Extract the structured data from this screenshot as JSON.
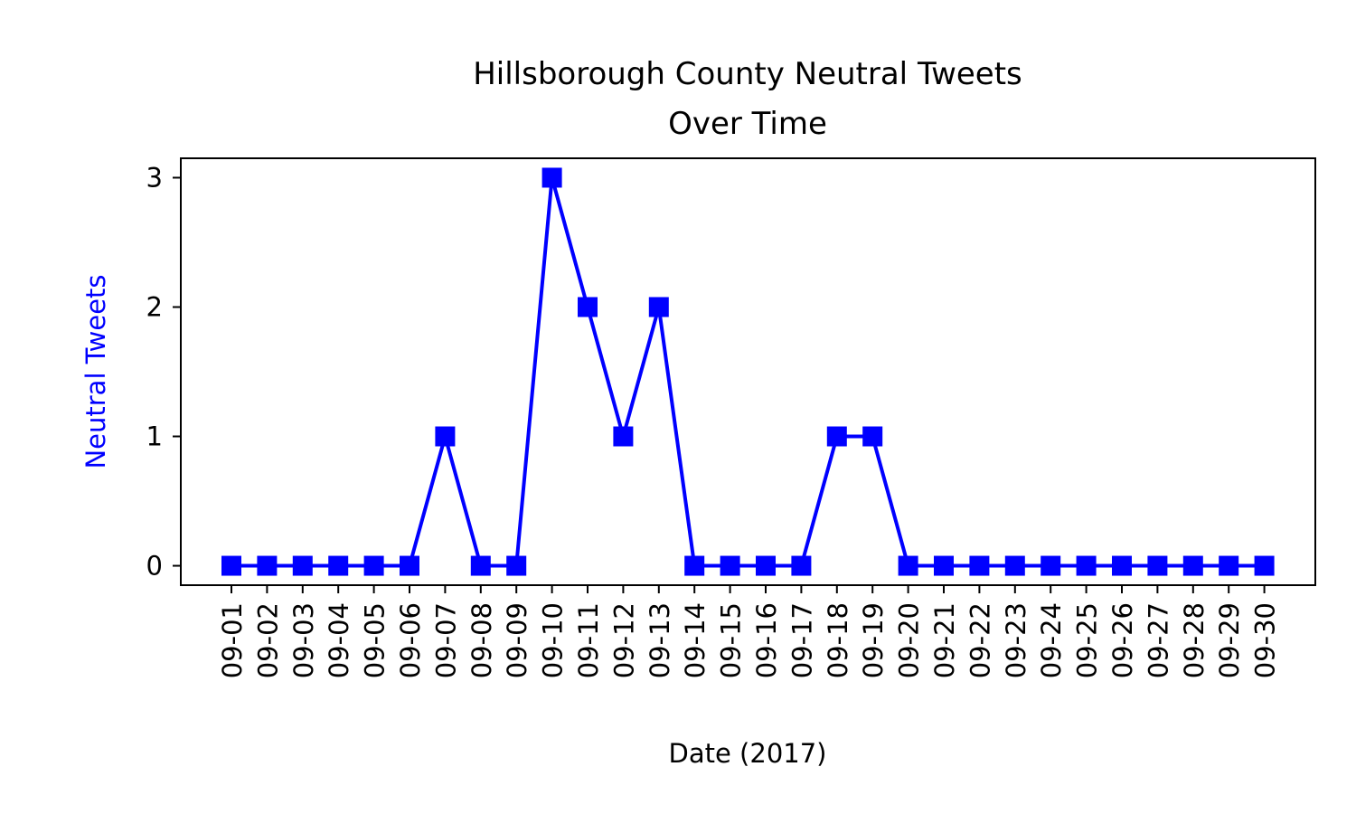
{
  "chart_data": {
    "type": "line",
    "title": "Hillsborough County Neutral Tweets",
    "subtitle": "Over Time",
    "xlabel": "Date (2017)",
    "ylabel": "Neutral Tweets",
    "ylabel_color": "#0000ff",
    "series_color": "#0000ff",
    "marker": "square",
    "grid": false,
    "legend": false,
    "ylim": [
      -0.15,
      3.15
    ],
    "yticks": [
      0,
      1,
      2,
      3
    ],
    "categories": [
      "09-01",
      "09-02",
      "09-03",
      "09-04",
      "09-05",
      "09-06",
      "09-07",
      "09-08",
      "09-09",
      "09-10",
      "09-11",
      "09-12",
      "09-13",
      "09-14",
      "09-15",
      "09-16",
      "09-17",
      "09-18",
      "09-19",
      "09-20",
      "09-21",
      "09-22",
      "09-23",
      "09-24",
      "09-25",
      "09-26",
      "09-27",
      "09-28",
      "09-29",
      "09-30"
    ],
    "series": [
      {
        "values": [
          0,
          0,
          0,
          0,
          0,
          0,
          1,
          0,
          0,
          3,
          2,
          1,
          2,
          0,
          0,
          0,
          0,
          1,
          1,
          0,
          0,
          0,
          0,
          0,
          0,
          0,
          0,
          0,
          0,
          0
        ]
      }
    ]
  }
}
